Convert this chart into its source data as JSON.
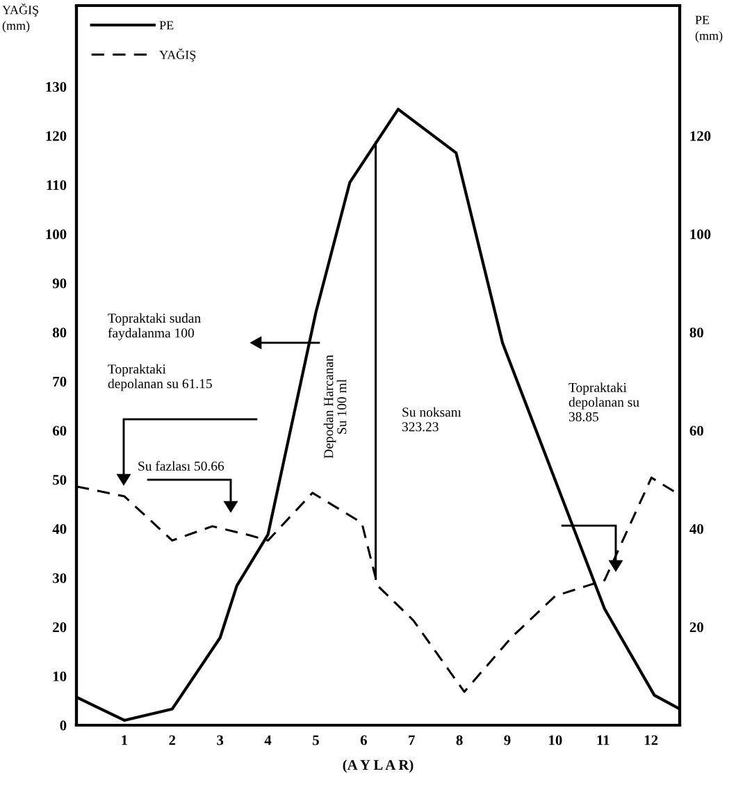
{
  "chart_data": {
    "type": "line",
    "xlabel": "(A Y L A R)",
    "ylabel": "YAĞIŞ\n(mm)",
    "y2label": "PE\n(mm)",
    "xlim": [
      0,
      12.6
    ],
    "xticks": [
      1,
      2,
      3,
      4,
      5,
      6,
      7,
      8,
      9,
      10,
      11,
      12
    ],
    "ylim": [
      0,
      146.5
    ],
    "yticks": [
      0,
      10,
      20,
      30,
      40,
      50,
      60,
      70,
      80,
      90,
      100,
      110,
      120,
      130
    ],
    "y2lim": [
      0,
      146.5
    ],
    "y2ticks": [
      20,
      40,
      60,
      80,
      100,
      120
    ],
    "legend": "top left",
    "grid": false,
    "series": [
      {
        "name": "PE",
        "color": "#000000",
        "line_style": "solid",
        "x": [
          0,
          1,
          2,
          3,
          3.35,
          4,
          5,
          5.71,
          6.72,
          7.93,
          8.9,
          11.03,
          12.07,
          12.6
        ],
        "values": [
          5.7,
          1,
          3.3,
          17.8,
          28.4,
          38.8,
          84,
          110.5,
          125.4,
          116.5,
          77.8,
          23.7,
          6.1,
          3.3
        ]
      },
      {
        "name": "YAĞIŞ",
        "color": "#000000",
        "line_style": "dashed",
        "x": [
          0,
          1,
          2,
          2.84,
          3.64,
          4,
          4.93,
          5.96,
          6.29,
          7.04,
          8.1,
          9.1,
          10,
          10.67,
          11.03,
          12.01,
          12.6
        ],
        "values": [
          48.6,
          46.6,
          37.6,
          40.5,
          38.6,
          37.6,
          47.3,
          41.2,
          28.4,
          21.3,
          6.8,
          18,
          26.3,
          28.4,
          29.5,
          50.4,
          46.9
        ]
      },
      {
        "color": "#000000",
        "line_style": "solid",
        "x": [
          6.25,
          6.25
        ],
        "values": [
          118.6,
          29.8
        ]
      }
    ],
    "annotations": [
      "Topraktaki sudan\nfaydalanma 100",
      "Topraktaki\ndepolanan su 61.15",
      "Su fazlası 50.66",
      "Depodan Harcanan\nSu 100 ml",
      "Su noksanı\n323.23",
      "Topraktaki\ndepolanan su\n38.85"
    ]
  }
}
